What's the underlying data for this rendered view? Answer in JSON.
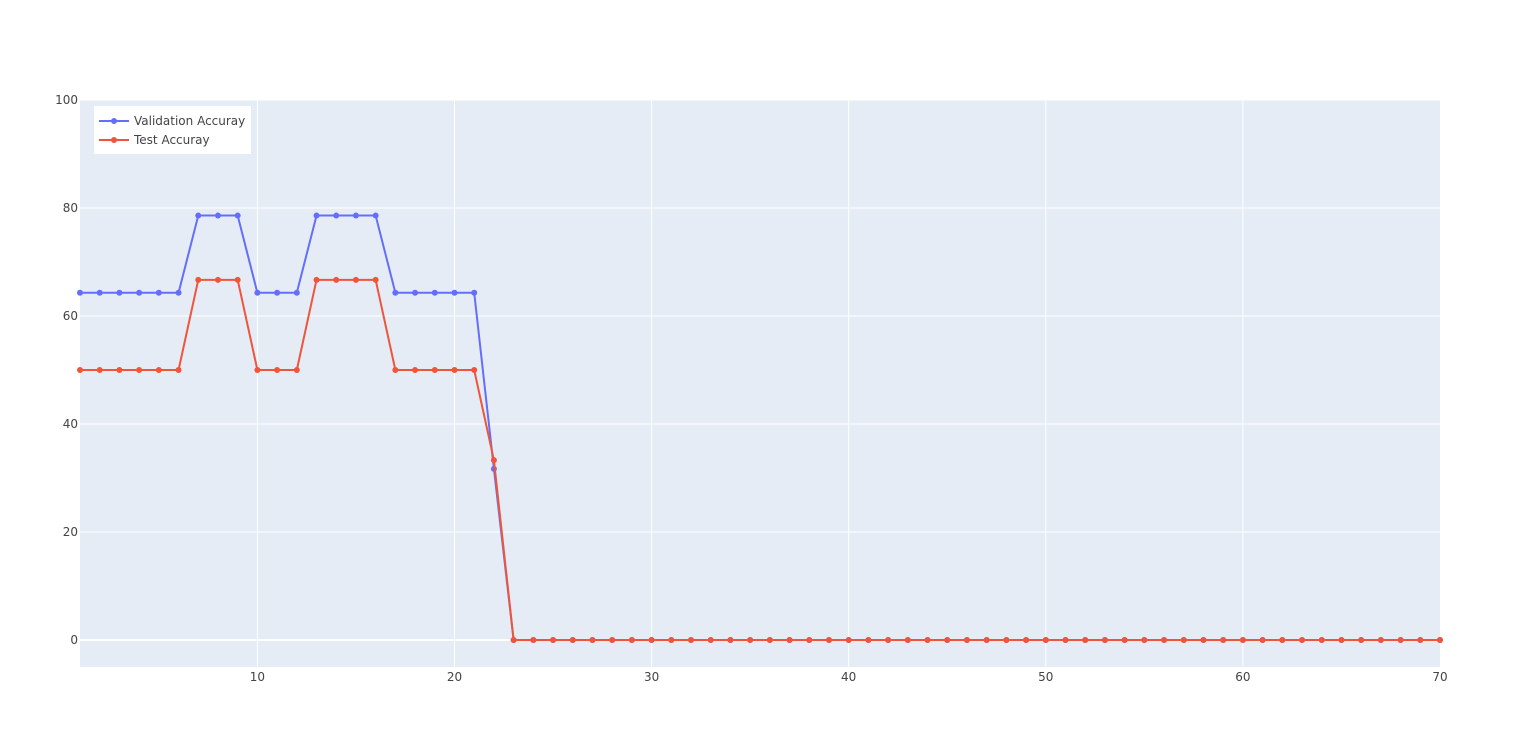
{
  "chart_data": {
    "type": "line",
    "title": "",
    "xlabel": "",
    "ylabel": "",
    "xlim": [
      1,
      70
    ],
    "ylim": [
      -5,
      100
    ],
    "xticks": [
      10,
      20,
      30,
      40,
      50,
      60,
      70
    ],
    "yticks": [
      0,
      20,
      40,
      60,
      80,
      100
    ],
    "grid": true,
    "legend_position": "top-left",
    "x": [
      1,
      2,
      3,
      4,
      5,
      6,
      7,
      8,
      9,
      10,
      11,
      12,
      13,
      14,
      15,
      16,
      17,
      18,
      19,
      20,
      21,
      22,
      23,
      24,
      25,
      26,
      27,
      28,
      29,
      30,
      31,
      32,
      33,
      34,
      35,
      36,
      37,
      38,
      39,
      40,
      41,
      42,
      43,
      44,
      45,
      46,
      47,
      48,
      49,
      50,
      51,
      52,
      53,
      54,
      55,
      56,
      57,
      58,
      59,
      60,
      61,
      62,
      63,
      64,
      65,
      66,
      67,
      68,
      69,
      70
    ],
    "series": [
      {
        "name": "Validation Accuray",
        "color": "#636efa",
        "values": [
          64.3,
          64.3,
          64.3,
          64.3,
          64.3,
          64.3,
          78.6,
          78.6,
          78.6,
          64.3,
          64.3,
          64.3,
          78.6,
          78.6,
          78.6,
          78.6,
          64.3,
          64.3,
          64.3,
          64.3,
          64.3,
          31.7,
          0,
          0,
          0,
          0,
          0,
          0,
          0,
          0,
          0,
          0,
          0,
          0,
          0,
          0,
          0,
          0,
          0,
          0,
          0,
          0,
          0,
          0,
          0,
          0,
          0,
          0,
          0,
          0,
          0,
          0,
          0,
          0,
          0,
          0,
          0,
          0,
          0,
          0,
          0,
          0,
          0,
          0,
          0,
          0,
          0,
          0,
          0,
          0
        ]
      },
      {
        "name": "Test Accuray",
        "color": "#ef553b",
        "values": [
          50,
          50,
          50,
          50,
          50,
          50,
          66.7,
          66.7,
          66.7,
          50,
          50,
          50,
          66.7,
          66.7,
          66.7,
          66.7,
          50,
          50,
          50,
          50,
          50,
          33.3,
          0,
          0,
          0,
          0,
          0,
          0,
          0,
          0,
          0,
          0,
          0,
          0,
          0,
          0,
          0,
          0,
          0,
          0,
          0,
          0,
          0,
          0,
          0,
          0,
          0,
          0,
          0,
          0,
          0,
          0,
          0,
          0,
          0,
          0,
          0,
          0,
          0,
          0,
          0,
          0,
          0,
          0,
          0,
          0,
          0,
          0,
          0,
          0
        ]
      }
    ],
    "plot_background": "#e5ecf6",
    "grid_color": "#ffffff"
  }
}
